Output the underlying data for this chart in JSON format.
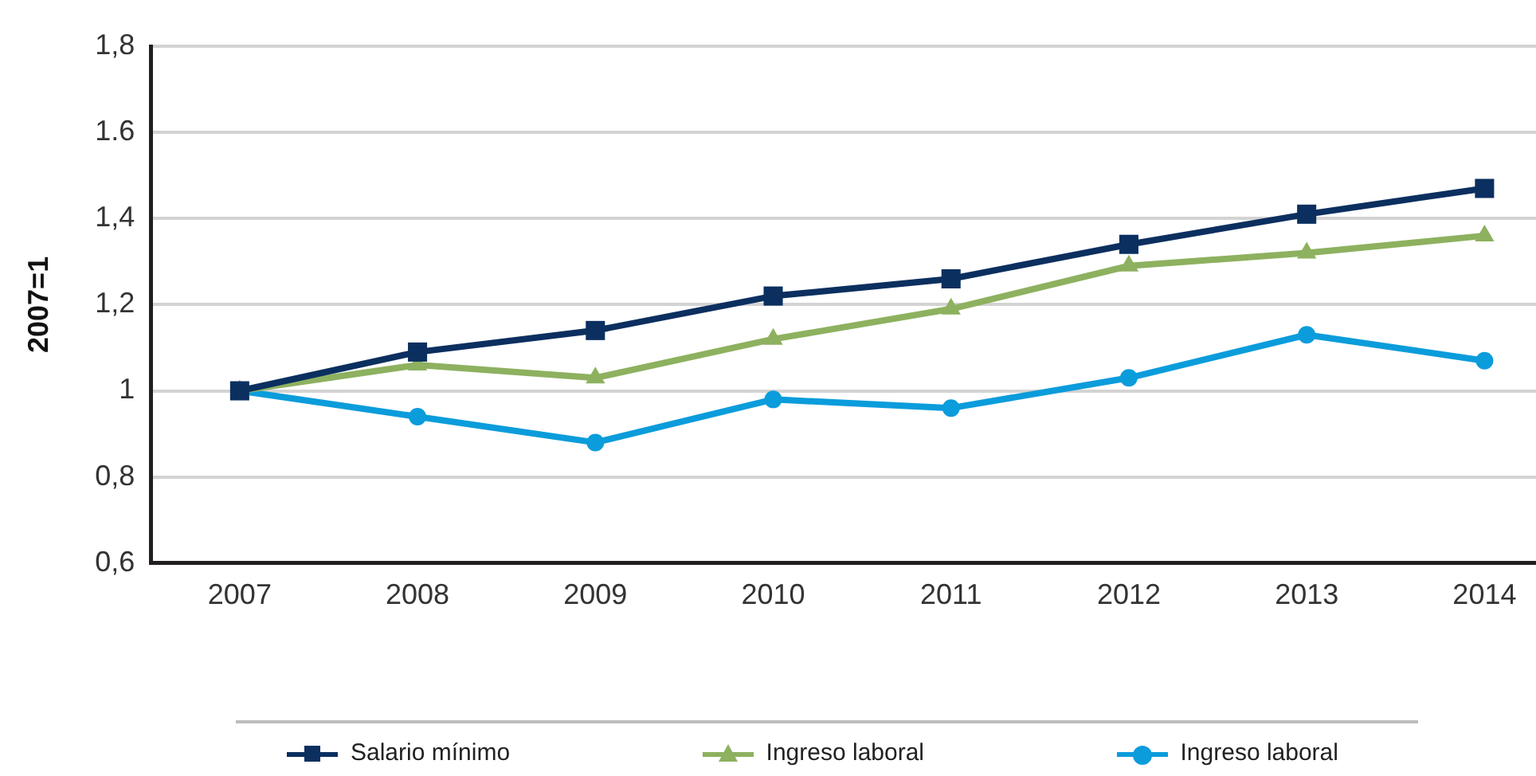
{
  "chart_data": {
    "type": "line",
    "ylabel": "2007=1",
    "categories": [
      "2007",
      "2008",
      "2009",
      "2010",
      "2011",
      "2012",
      "2013",
      "2014"
    ],
    "series": [
      {
        "name": "Salario mínimo",
        "color": "#0b2f5f",
        "marker": "square",
        "values": [
          1,
          1.09,
          1.14,
          1.22,
          1.26,
          1.34,
          1.41,
          1.47
        ]
      },
      {
        "name": "Ingreso laboral",
        "color": "#8db15f",
        "marker": "triangle",
        "values": [
          1,
          1.06,
          1.03,
          1.12,
          1.19,
          1.29,
          1.32,
          1.36
        ]
      },
      {
        "name": "Ingreso laboral",
        "color": "#0b9cdb",
        "marker": "circle",
        "values": [
          1,
          0.94,
          0.88,
          0.98,
          0.96,
          1.03,
          1.13,
          1.07
        ]
      }
    ],
    "ylim": [
      0.6,
      1.8
    ],
    "yticks": [
      {
        "value": 0.6,
        "label": "0,6"
      },
      {
        "value": 0.8,
        "label": "0,8"
      },
      1,
      {
        "value": 1.2,
        "label": "1,2"
      },
      {
        "value": 1.4,
        "label": "1,4"
      },
      {
        "value": 1.6,
        "label": "1.6"
      },
      {
        "value": 1.8,
        "label": "1,8"
      }
    ],
    "grid": "y",
    "legend": "bottom"
  }
}
